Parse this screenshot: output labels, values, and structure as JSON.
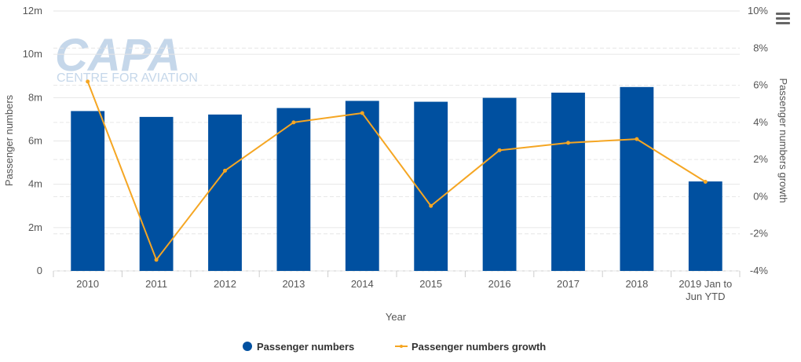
{
  "watermark": {
    "brand": "CAPA",
    "tagline": "CENTRE FOR AVIATION"
  },
  "menu": {
    "icon": "hamburger-menu-icon"
  },
  "colors": {
    "bar": "#0050a0",
    "line": "#f5a623",
    "grid": "#e6e6e6",
    "text": "#555555"
  },
  "chart_data": {
    "type": "bar",
    "title": "",
    "xlabel": "Year",
    "ylabel": "Passenger numbers",
    "y2label": "Passenger numbers growth",
    "categories": [
      "2010",
      "2011",
      "2012",
      "2013",
      "2014",
      "2015",
      "2016",
      "2017",
      "2018",
      "2019 Jan to Jun YTD"
    ],
    "category_label_lines": [
      [
        "2010"
      ],
      [
        "2011"
      ],
      [
        "2012"
      ],
      [
        "2013"
      ],
      [
        "2014"
      ],
      [
        "2015"
      ],
      [
        "2016"
      ],
      [
        "2017"
      ],
      [
        "2018"
      ],
      [
        "2019 Jan to",
        "Jun YTD"
      ]
    ],
    "ylim": [
      0,
      12000000
    ],
    "y_ticks": [
      0,
      2000000,
      4000000,
      6000000,
      8000000,
      10000000,
      12000000
    ],
    "y_tick_labels": [
      "0",
      "2m",
      "4m",
      "6m",
      "8m",
      "10m",
      "12m"
    ],
    "y2lim": [
      -4,
      10
    ],
    "y2_ticks": [
      -4,
      -2,
      0,
      2,
      4,
      6,
      8,
      10
    ],
    "y2_tick_labels": [
      "-4%",
      "-2%",
      "0%",
      "2%",
      "4%",
      "6%",
      "8%",
      "10%"
    ],
    "grid": true,
    "legend_position": "bottom-center",
    "series": [
      {
        "name": "Passenger numbers",
        "type": "bar",
        "axis": "left",
        "values": [
          7380000,
          7110000,
          7220000,
          7520000,
          7850000,
          7810000,
          7990000,
          8230000,
          8490000,
          4130000
        ]
      },
      {
        "name": "Passenger numbers growth",
        "type": "line",
        "axis": "right",
        "values": [
          6.2,
          -3.4,
          1.4,
          4.0,
          4.5,
          -0.5,
          2.5,
          2.9,
          3.1,
          0.8
        ]
      }
    ]
  }
}
